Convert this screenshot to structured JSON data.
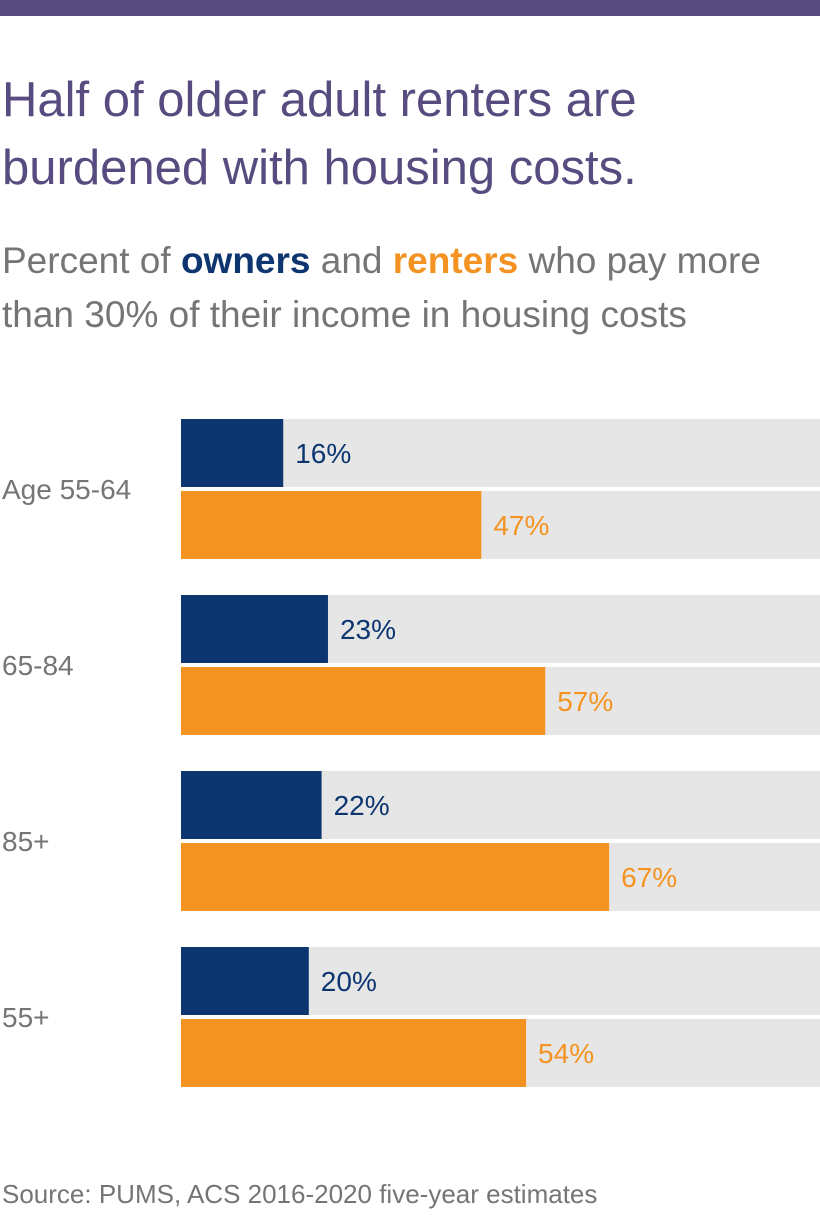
{
  "header": {
    "title_line1": "Half of older adult renters are",
    "title_line2": "burdened with housing costs.",
    "subtitle_pre": "Percent of ",
    "subtitle_owners": "owners",
    "subtitle_mid": " and ",
    "subtitle_renters": "renters",
    "subtitle_post_line1": " who pay more",
    "subtitle_line2": "than 30% of their income in housing costs"
  },
  "source": "Source: PUMS, ACS 2016-2020 five-year estimates",
  "colors": {
    "band": "#574b7f",
    "title": "#574b7f",
    "owners": "#0d3671",
    "renters": "#f59322",
    "track": "#e6e6e6",
    "text": "#757575"
  },
  "chart_data": {
    "type": "bar",
    "orientation": "horizontal",
    "categories": [
      "Age 55-64",
      "65-84",
      "85+",
      "55+"
    ],
    "series": [
      {
        "name": "owners",
        "values": [
          16,
          23,
          22,
          20
        ],
        "labels": [
          "16%",
          "23%",
          "22%",
          "20%"
        ]
      },
      {
        "name": "renters",
        "values": [
          47,
          57,
          67,
          54
        ],
        "labels": [
          "47%",
          "57%",
          "67%",
          "54%"
        ]
      }
    ],
    "xlim": [
      0,
      100
    ],
    "unit": "%",
    "grid": false,
    "legend": "in subtitle"
  }
}
